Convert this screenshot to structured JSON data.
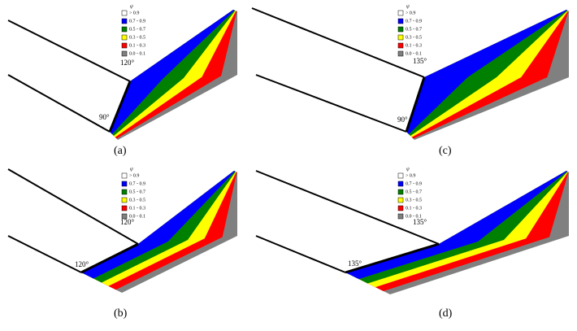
{
  "panels": [
    {
      "label": "(a)",
      "angles": [
        "120°",
        "90°"
      ],
      "legend": {
        "title": "ψ",
        "items": [
          {
            "label": "> 0.9",
            "color": "#ffffff"
          },
          {
            "label": "0.7 - 0.9",
            "color": "#0000ff"
          },
          {
            "label": "0.5 - 0.7",
            "color": "#008000"
          },
          {
            "label": "0.3 - 0.5",
            "color": "#ffff00"
          },
          {
            "label": "0.1 - 0.3",
            "color": "#ff0000"
          },
          {
            "label": "0.0 - 0.1",
            "color": "#808080"
          }
        ]
      }
    },
    {
      "label": "(c)",
      "angles": [
        "135°",
        "90°"
      ],
      "legend": {
        "title": "ψ",
        "items": [
          {
            "label": "> 0.9",
            "color": "#ffffff"
          },
          {
            "label": "0.7 - 0.9",
            "color": "#0000ff"
          },
          {
            "label": "0.5 - 0.7",
            "color": "#008000"
          },
          {
            "label": "0.3 - 0.5",
            "color": "#ffff00"
          },
          {
            "label": "0.1 - 0.3",
            "color": "#ff0000"
          },
          {
            "label": "0.0 - 0.1",
            "color": "#808080"
          }
        ]
      }
    },
    {
      "label": "(b)",
      "angles": [
        "120°",
        "120°"
      ],
      "legend": {
        "title": "ψ",
        "items": [
          {
            "label": "> 0.9",
            "color": "#ffffff"
          },
          {
            "label": "0.7 - 0.9",
            "color": "#0000ff"
          },
          {
            "label": "0.5 - 0.7",
            "color": "#008000"
          },
          {
            "label": "0.3 - 0.5",
            "color": "#ffff00"
          },
          {
            "label": "0.1 - 0.3",
            "color": "#ff0000"
          },
          {
            "label": "0.0 - 0.1",
            "color": "#808080"
          }
        ]
      }
    },
    {
      "label": "(d)",
      "angles": [
        "135°",
        "135°"
      ],
      "legend": {
        "title": "ψ",
        "items": [
          {
            "label": "> 0.9",
            "color": "#ffffff"
          },
          {
            "label": "0.7 - 0.9",
            "color": "#0000ff"
          },
          {
            "label": "0.5 - 0.7",
            "color": "#008000"
          },
          {
            "label": "0.3 - 0.5",
            "color": "#ffff00"
          },
          {
            "label": "0.1 - 0.3",
            "color": "#ff0000"
          },
          {
            "label": "0.0 - 0.1",
            "color": "#808080"
          }
        ]
      }
    }
  ]
}
